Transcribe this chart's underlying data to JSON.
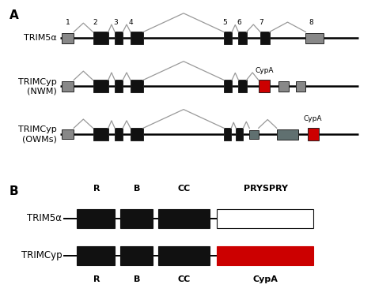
{
  "fig_width": 4.74,
  "fig_height": 3.89,
  "dpi": 100,
  "bg_color": "#ffffff",
  "panel_A_label": "A",
  "panel_B_label": "B",
  "label_trim5a": "TRIM5α",
  "label_trimcyp_nwm": "TRIMCyp\n(NWM)",
  "label_trimcyp_owms": "TRIMCyp\n(OWMs)",
  "cypa_label": "CypA",
  "domain_labels_top": [
    "R",
    "B",
    "CC",
    "PRYSPRY"
  ],
  "domain_labels_bottom": [
    "R",
    "B",
    "CC",
    "CypA"
  ],
  "label_trim5a_b": "TRIM5α",
  "label_trimcyp_b": "TRIMCyp"
}
